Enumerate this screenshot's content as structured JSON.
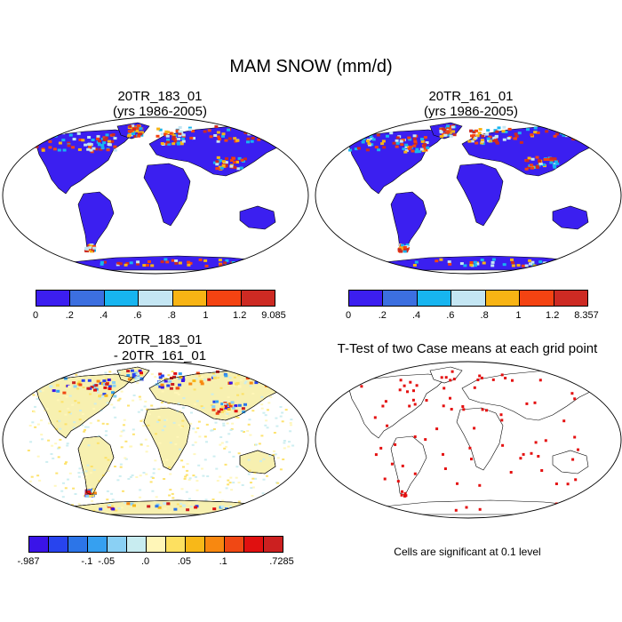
{
  "figure": {
    "title": "MAM SNOW (mm/d)"
  },
  "panels": [
    {
      "id": "case1",
      "title_line1": "20TR_183_01",
      "title_line2": "(yrs 1986-2005)",
      "ocean_color": "#ffffff",
      "land_base_color": "#3b1ff0",
      "colorbar": {
        "colors": [
          "#3c1ef0",
          "#3c6fe0",
          "#17b5f0",
          "#c4e6f3",
          "#f8b414",
          "#f44312",
          "#cd2a23"
        ],
        "tick_labels": [
          "0",
          ".2",
          ".4",
          ".6",
          ".8",
          "1",
          "1.2",
          "9.085"
        ]
      }
    },
    {
      "id": "case2",
      "title_line1": "20TR_161_01",
      "title_line2": "(yrs 1986-2005)",
      "ocean_color": "#ffffff",
      "land_base_color": "#3b1ff0",
      "colorbar": {
        "colors": [
          "#3c1ef0",
          "#3c6fe0",
          "#17b5f0",
          "#c4e6f3",
          "#f8b414",
          "#f44312",
          "#cd2a23"
        ],
        "tick_labels": [
          "0",
          ".2",
          ".4",
          ".6",
          ".8",
          "1",
          "1.2",
          "8.357"
        ]
      }
    },
    {
      "id": "difference",
      "title_line1": "20TR_183_01",
      "title_line2": "- 20TR_161_01",
      "ocean_color": "#ffffff",
      "land_base_color": "#f7f0b0",
      "colorbar": {
        "colors": [
          "#3a14e8",
          "#2844ee",
          "#2c75e8",
          "#36a0f0",
          "#8ad0f4",
          "#c8ecf0",
          "#fff6b8",
          "#fde060",
          "#f8b818",
          "#f88810",
          "#f04814",
          "#e01010",
          "#cc2020"
        ],
        "tick_labels": [
          "-.987",
          "-.1",
          "-.05",
          ".0",
          ".05",
          ".1",
          ".7285"
        ],
        "tick_boundaries": [
          0,
          3,
          4,
          6,
          8,
          10,
          13
        ]
      }
    },
    {
      "id": "ttest",
      "title_line1": "T-Test of two Case means at each grid point",
      "ocean_color": "#ffffff",
      "land_base_color": "#ffffff",
      "significant_color": "#e41010",
      "footnote": "Cells are significant at 0.1 level"
    }
  ]
}
